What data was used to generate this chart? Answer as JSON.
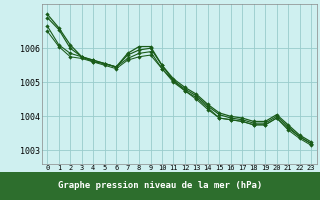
{
  "background_color": "#cff0f0",
  "grid_color": "#99cccc",
  "footer_color": "#2d6e2d",
  "line_colors": [
    "#1a5c1a",
    "#1a5c1a",
    "#1a5c1a",
    "#1a5c1a"
  ],
  "xlabel": "Graphe pression niveau de la mer (hPa)",
  "ylabel_ticks": [
    1003,
    1004,
    1005,
    1006
  ],
  "xlim": [
    -0.5,
    23.5
  ],
  "ylim": [
    1002.6,
    1007.3
  ],
  "hours": [
    0,
    1,
    2,
    3,
    4,
    5,
    6,
    7,
    8,
    9,
    10,
    11,
    12,
    13,
    14,
    15,
    16,
    17,
    18,
    19,
    20,
    21,
    22,
    23
  ],
  "series": [
    [
      1007.0,
      1006.6,
      1006.1,
      1005.75,
      1005.65,
      1005.55,
      1005.45,
      1005.85,
      1006.05,
      1006.05,
      1005.5,
      1005.1,
      1004.85,
      1004.65,
      1004.35,
      1004.1,
      1004.0,
      1003.95,
      1003.85,
      1003.85,
      1004.05,
      1003.75,
      1003.45,
      1003.25
    ],
    [
      1006.65,
      1006.1,
      1005.85,
      1005.75,
      1005.65,
      1005.55,
      1005.45,
      1005.7,
      1005.85,
      1005.9,
      1005.4,
      1005.05,
      1004.75,
      1004.55,
      1004.25,
      1003.95,
      1003.9,
      1003.85,
      1003.75,
      1003.75,
      1003.95,
      1003.65,
      1003.4,
      1003.2
    ],
    [
      1006.9,
      1006.55,
      1006.0,
      1005.75,
      1005.6,
      1005.55,
      1005.45,
      1005.8,
      1005.95,
      1006.0,
      1005.5,
      1005.05,
      1004.8,
      1004.6,
      1004.3,
      1004.05,
      1003.95,
      1003.9,
      1003.8,
      1003.8,
      1004.0,
      1003.7,
      1003.4,
      1003.2
    ],
    [
      1006.5,
      1006.05,
      1005.75,
      1005.7,
      1005.6,
      1005.5,
      1005.4,
      1005.65,
      1005.75,
      1005.8,
      1005.4,
      1005.0,
      1004.75,
      1004.5,
      1004.2,
      1003.95,
      1003.9,
      1003.85,
      1003.75,
      1003.75,
      1003.95,
      1003.6,
      1003.35,
      1003.15
    ]
  ]
}
